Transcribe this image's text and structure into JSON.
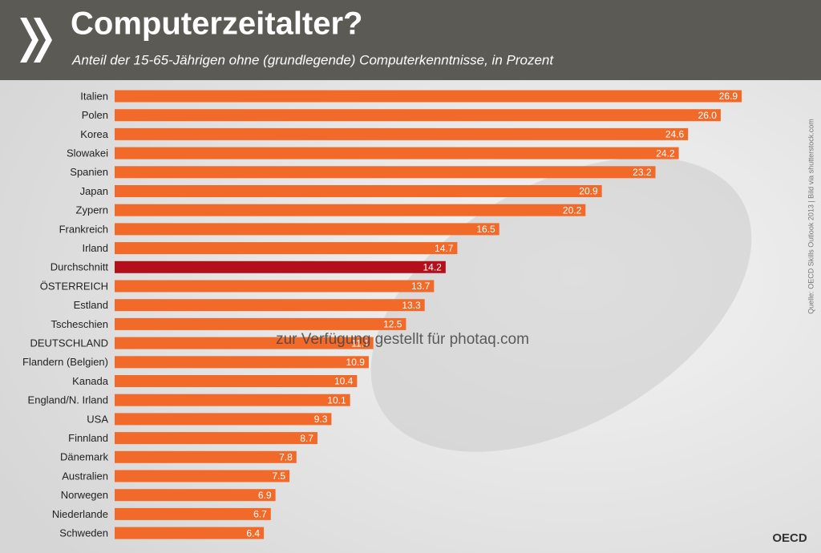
{
  "chart_data": {
    "type": "bar",
    "orientation": "horizontal",
    "title": "Computerzeitalter?",
    "subtitle": "Anteil der 15-65-Jährigen ohne (grundlegende) Computerkenntnisse, in Prozent",
    "source": "Quelle: OECD Skills Outlook 2013 | Bild via shutterstock.com",
    "watermark": "zur Verfügung gestellt für photaq.com",
    "logo_text": "OECD",
    "categories": [
      "Italien",
      "Polen",
      "Korea",
      "Slowakei",
      "Spanien",
      "Japan",
      "Zypern",
      "Frankreich",
      "Irland",
      "Durchschnitt",
      "ÖSTERREICH",
      "Estland",
      "Tscheschien",
      "DEUTSCHLAND",
      "Flandern (Belgien)",
      "Kanada",
      "England/N. Irland",
      "USA",
      "Finnland",
      "Dänemark",
      "Australien",
      "Norwegen",
      "Niederlande",
      "Schweden"
    ],
    "values": [
      26.9,
      26.0,
      24.6,
      24.2,
      23.2,
      20.9,
      20.2,
      16.5,
      14.7,
      14.2,
      13.7,
      13.3,
      12.5,
      11.1,
      10.9,
      10.4,
      10.1,
      9.3,
      8.7,
      7.8,
      7.5,
      6.9,
      6.7,
      6.4
    ],
    "value_labels": [
      "26.9",
      "26.0",
      "24.6",
      "24.2",
      "23.2",
      "20.9",
      "20.2",
      "16.5",
      "14.7",
      "14.2",
      "13.7",
      "13.3",
      "12.5",
      "11.1",
      "10.9",
      "10.4",
      "10.1",
      "9.3",
      "8.7",
      "7.8",
      "7.5",
      "6.9",
      "6.7",
      "6.4"
    ],
    "colors": [
      "#f26a2a",
      "#f26a2a",
      "#f26a2a",
      "#f26a2a",
      "#f26a2a",
      "#f26a2a",
      "#f26a2a",
      "#f26a2a",
      "#f26a2a",
      "#b3101b",
      "#f26a2a",
      "#f26a2a",
      "#f26a2a",
      "#f26a2a",
      "#f26a2a",
      "#f26a2a",
      "#f26a2a",
      "#f26a2a",
      "#f26a2a",
      "#f26a2a",
      "#f26a2a",
      "#f26a2a",
      "#f26a2a",
      "#f26a2a"
    ],
    "xlim": [
      0,
      27
    ]
  }
}
